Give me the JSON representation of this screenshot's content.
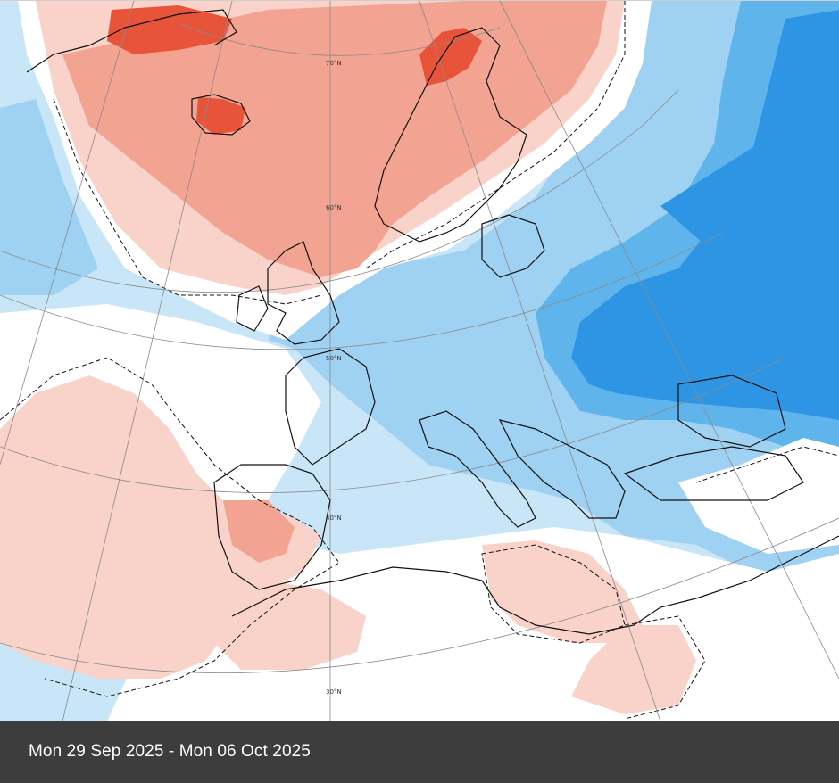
{
  "colors": {
    "strong_warm": "#e8543a",
    "warm": "#f3a391",
    "light_warm": "#f9d3c9",
    "neutral": "#ffffff",
    "light_cool": "#c9e6f8",
    "cool": "#9fd1f2",
    "medium_cool": "#5fb4ec",
    "strong_cool": "#2e95e5",
    "coastline": "#111111",
    "graticule": "#8a8a8a",
    "caption_bar": "#3d3d3d",
    "caption_text": "#ffffff"
  },
  "map": {
    "latitude_labels": [
      "70°N",
      "60°N",
      "50°N",
      "40°N",
      "30°N"
    ]
  },
  "caption": {
    "date_range": "Mon 29 Sep 2025 - Mon 06 Oct 2025"
  }
}
